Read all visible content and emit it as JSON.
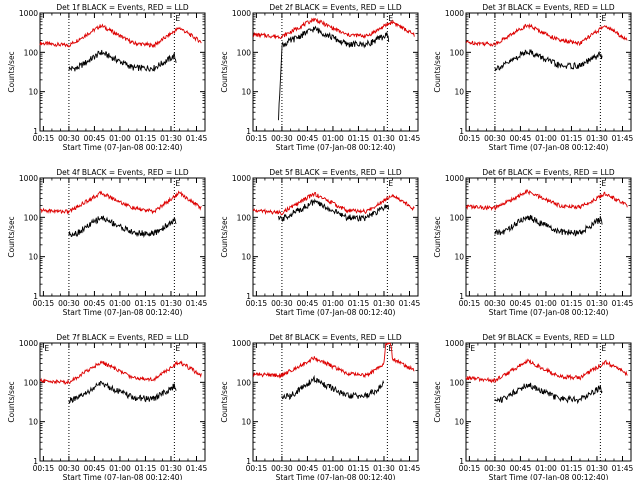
{
  "figure": {
    "x_tick_labels": [
      "00:15",
      "00:30",
      "00:45",
      "01:00",
      "01:15",
      "01:30",
      "01:45"
    ],
    "y_tick_labels": [
      "1",
      "10",
      "100",
      "1000"
    ],
    "xlabel": "Start Time (07-Jan-08 00:12:40)",
    "ylabel": "Counts/sec",
    "marker_label": "E",
    "colors": {
      "events": "#000000",
      "lld": "#dd0000",
      "axes": "#000000",
      "background": "#ffffff"
    }
  },
  "chart_data": [
    {
      "type": "line",
      "title": "Det 1f BLACK = Events, RED = LLD",
      "xlabel": "Start Time (07-Jan-08 00:12:40)",
      "ylabel": "Counts/sec",
      "ylim": [
        1,
        1000
      ],
      "yscale": "log",
      "x_ticks": [
        "00:15",
        "00:30",
        "00:45",
        "01:00",
        "01:15",
        "01:30",
        "01:45"
      ],
      "markers": [
        {
          "label": "",
          "x": "00:30"
        },
        {
          "label": "E",
          "x": "01:32"
        }
      ],
      "series": [
        {
          "name": "RED = LLD",
          "x": [
            "00:13",
            "00:30",
            "00:49",
            "01:08",
            "01:20",
            "01:35",
            "01:48"
          ],
          "values": [
            170,
            150,
            480,
            170,
            150,
            420,
            180
          ]
        },
        {
          "name": "BLACK = Events",
          "x": [
            "00:30",
            "00:35",
            "00:49",
            "01:08",
            "01:20",
            "01:32",
            "01:33"
          ],
          "values": [
            38,
            40,
            100,
            40,
            40,
            80,
            60
          ]
        }
      ]
    },
    {
      "type": "line",
      "title": "Det 2f BLACK = Events, RED = LLD",
      "xlabel": "Start Time (07-Jan-08 00:12:40)",
      "ylabel": "Counts/sec",
      "ylim": [
        1,
        1000
      ],
      "yscale": "log",
      "x_ticks": [
        "00:15",
        "00:30",
        "00:45",
        "01:00",
        "01:15",
        "01:30",
        "01:45"
      ],
      "markers": [
        {
          "label": "",
          "x": "00:30"
        },
        {
          "label": "E",
          "x": "01:32"
        }
      ],
      "series": [
        {
          "name": "RED = LLD",
          "x": [
            "00:13",
            "00:30",
            "00:49",
            "01:08",
            "01:20",
            "01:35",
            "01:48"
          ],
          "values": [
            280,
            250,
            700,
            280,
            260,
            600,
            270
          ]
        },
        {
          "name": "BLACK = Events",
          "x": [
            "00:28",
            "00:30",
            "00:49",
            "01:08",
            "01:20",
            "01:32",
            "01:33"
          ],
          "values": [
            2,
            150,
            400,
            160,
            160,
            280,
            200
          ]
        }
      ]
    },
    {
      "type": "line",
      "title": "Det 3f BLACK = Events, RED = LLD",
      "xlabel": "Start Time (07-Jan-08 00:12:40)",
      "ylabel": "Counts/sec",
      "ylim": [
        1,
        1000
      ],
      "yscale": "log",
      "x_ticks": [
        "00:15",
        "00:30",
        "00:45",
        "01:00",
        "01:15",
        "01:30",
        "01:45"
      ],
      "markers": [
        {
          "label": "",
          "x": "00:30"
        },
        {
          "label": "E",
          "x": "01:32"
        }
      ],
      "series": [
        {
          "name": "RED = LLD",
          "x": [
            "00:13",
            "00:30",
            "00:49",
            "01:08",
            "01:20",
            "01:35",
            "01:48"
          ],
          "values": [
            180,
            160,
            500,
            200,
            170,
            480,
            200
          ]
        },
        {
          "name": "BLACK = Events",
          "x": [
            "00:30",
            "00:35",
            "00:49",
            "01:08",
            "01:20",
            "01:32",
            "01:33"
          ],
          "values": [
            40,
            45,
            110,
            45,
            45,
            90,
            70
          ]
        }
      ]
    },
    {
      "type": "line",
      "title": "Det 4f BLACK = Events, RED = LLD",
      "xlabel": "Start Time (07-Jan-08 00:12:40)",
      "ylabel": "Counts/sec",
      "ylim": [
        1,
        1000
      ],
      "yscale": "log",
      "x_ticks": [
        "00:15",
        "00:30",
        "00:45",
        "01:00",
        "01:15",
        "01:30",
        "01:45"
      ],
      "markers": [
        {
          "label": "",
          "x": "00:30"
        },
        {
          "label": "E",
          "x": "01:32"
        }
      ],
      "series": [
        {
          "name": "RED = LLD",
          "x": [
            "00:13",
            "00:30",
            "00:49",
            "01:08",
            "01:20",
            "01:35",
            "01:48"
          ],
          "values": [
            150,
            140,
            420,
            170,
            140,
            420,
            170
          ]
        },
        {
          "name": "BLACK = Events",
          "x": [
            "00:30",
            "00:35",
            "00:49",
            "01:08",
            "01:20",
            "01:32",
            "01:33"
          ],
          "values": [
            38,
            40,
            100,
            40,
            38,
            85,
            60
          ]
        }
      ]
    },
    {
      "type": "line",
      "title": "Det 5f BLACK = Events, RED = LLD",
      "xlabel": "Start Time (07-Jan-08 00:12:40)",
      "ylabel": "Counts/sec",
      "ylim": [
        1,
        1000
      ],
      "yscale": "log",
      "x_ticks": [
        "00:15",
        "00:30",
        "00:45",
        "01:00",
        "01:15",
        "01:30",
        "01:45"
      ],
      "markers": [
        {
          "label": "",
          "x": "00:30"
        },
        {
          "label": "E",
          "x": "01:32"
        }
      ],
      "series": [
        {
          "name": "RED = LLD",
          "x": [
            "00:13",
            "00:30",
            "00:49",
            "01:08",
            "01:20",
            "01:35",
            "01:48"
          ],
          "values": [
            150,
            130,
            400,
            150,
            140,
            380,
            160
          ]
        },
        {
          "name": "BLACK = Events",
          "x": [
            "00:28",
            "00:30",
            "00:49",
            "01:08",
            "01:20",
            "01:32",
            "01:33"
          ],
          "values": [
            90,
            90,
            250,
            100,
            95,
            200,
            150
          ]
        }
      ]
    },
    {
      "type": "line",
      "title": "Det 6f BLACK = Events, RED = LLD",
      "xlabel": "Start Time (07-Jan-08 00:12:40)",
      "ylabel": "Counts/sec",
      "ylim": [
        1,
        1000
      ],
      "yscale": "log",
      "x_ticks": [
        "00:15",
        "00:30",
        "00:45",
        "01:00",
        "01:15",
        "01:30",
        "01:45"
      ],
      "markers": [
        {
          "label": "",
          "x": "00:30"
        },
        {
          "label": "E",
          "x": "01:32"
        }
      ],
      "series": [
        {
          "name": "RED = LLD",
          "x": [
            "00:13",
            "00:30",
            "00:49",
            "01:08",
            "01:20",
            "01:35",
            "01:48"
          ],
          "values": [
            190,
            170,
            450,
            200,
            180,
            400,
            200
          ]
        },
        {
          "name": "BLACK = Events",
          "x": [
            "00:30",
            "00:35",
            "00:49",
            "01:08",
            "01:20",
            "01:32",
            "01:33"
          ],
          "values": [
            40,
            42,
            105,
            42,
            40,
            90,
            65
          ]
        }
      ]
    },
    {
      "type": "line",
      "title": "Det 7f BLACK = Events, RED = LLD",
      "xlabel": "Start Time (07-Jan-08 00:12:40)",
      "ylabel": "Counts/sec",
      "ylim": [
        1,
        1000
      ],
      "yscale": "log",
      "x_ticks": [
        "00:15",
        "00:30",
        "00:45",
        "01:00",
        "01:15",
        "01:30",
        "01:45"
      ],
      "markers": [
        {
          "label": "E",
          "x": "00:15"
        },
        {
          "label": "",
          "x": "00:30"
        },
        {
          "label": "E",
          "x": "01:32"
        }
      ],
      "series": [
        {
          "name": "RED = LLD",
          "x": [
            "00:13",
            "00:30",
            "00:49",
            "01:08",
            "01:20",
            "01:35",
            "01:48"
          ],
          "values": [
            110,
            100,
            330,
            130,
            120,
            330,
            150
          ]
        },
        {
          "name": "BLACK = Events",
          "x": [
            "00:30",
            "00:35",
            "00:49",
            "01:08",
            "01:20",
            "01:32",
            "01:33"
          ],
          "values": [
            35,
            38,
            95,
            40,
            38,
            80,
            60
          ]
        }
      ]
    },
    {
      "type": "line",
      "title": "Det 8f BLACK = Events, RED = LLD",
      "xlabel": "Start Time (07-Jan-08 00:12:40)",
      "ylabel": "Counts/sec",
      "ylim": [
        1,
        1000
      ],
      "yscale": "log",
      "x_ticks": [
        "00:15",
        "00:30",
        "00:45",
        "01:00",
        "01:15",
        "01:30",
        "01:45"
      ],
      "markers": [
        {
          "label": "",
          "x": "00:30"
        },
        {
          "label": "E",
          "x": "01:32"
        }
      ],
      "series": [
        {
          "name": "RED = LLD",
          "x": [
            "00:13",
            "00:30",
            "00:49",
            "01:08",
            "01:20",
            "01:30",
            "01:31",
            "01:34",
            "01:35",
            "01:48"
          ],
          "values": [
            160,
            150,
            420,
            170,
            150,
            300,
            1000,
            1000,
            400,
            200
          ]
        },
        {
          "name": "BLACK = Events",
          "x": [
            "00:30",
            "00:35",
            "00:49",
            "01:08",
            "01:20",
            "01:29",
            "01:30"
          ],
          "values": [
            42,
            45,
            120,
            45,
            45,
            80,
            100
          ]
        }
      ]
    },
    {
      "type": "line",
      "title": "Det 9f BLACK = Events, RED = LLD",
      "xlabel": "Start Time (07-Jan-08 00:12:40)",
      "ylabel": "Counts/sec",
      "ylim": [
        1,
        1000
      ],
      "yscale": "log",
      "x_ticks": [
        "00:15",
        "00:30",
        "00:45",
        "01:00",
        "01:15",
        "01:30",
        "01:45"
      ],
      "markers": [
        {
          "label": "E",
          "x": "00:15"
        },
        {
          "label": "",
          "x": "00:30"
        },
        {
          "label": "E",
          "x": "01:32"
        }
      ],
      "series": [
        {
          "name": "RED = LLD",
          "x": [
            "00:13",
            "00:30",
            "00:49",
            "01:08",
            "01:20",
            "01:35",
            "01:48"
          ],
          "values": [
            130,
            110,
            350,
            140,
            130,
            330,
            160
          ]
        },
        {
          "name": "BLACK = Events",
          "x": [
            "00:30",
            "00:35",
            "00:49",
            "01:08",
            "01:20",
            "01:32",
            "01:33"
          ],
          "values": [
            35,
            38,
            90,
            38,
            36,
            75,
            55
          ]
        }
      ]
    }
  ]
}
